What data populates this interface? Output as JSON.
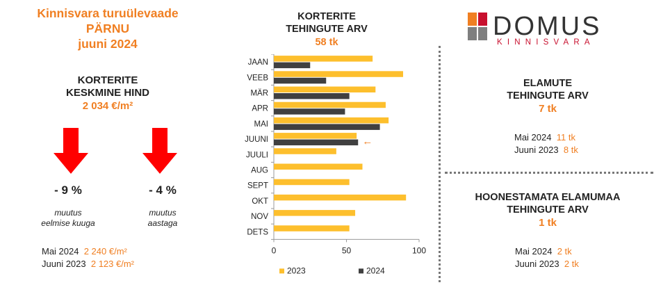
{
  "left": {
    "title_lines": [
      "Kinnisvara turuülevaade",
      "PÄRNU",
      "juuni 2024"
    ],
    "avg_price_label_lines": [
      "KORTERITE",
      "KESKMINE HIND"
    ],
    "avg_price_value": "2 034 €/m²",
    "changes": [
      {
        "value": "- 9 %",
        "note_lines": [
          "muutus",
          "eelmise kuuga"
        ]
      },
      {
        "value": "- 4 %",
        "note_lines": [
          "muutus",
          "aastaga"
        ]
      }
    ],
    "comparison": [
      {
        "label": "Mai 2024",
        "value": "2 240 €/m²"
      },
      {
        "label": "Juuni 2023",
        "value": "2 123 €/m²"
      }
    ]
  },
  "middle": {
    "title_lines": [
      "KORTERITE",
      "TEHINGUTE ARV"
    ],
    "total": "58 tk",
    "arrow_glyph": "←"
  },
  "chart_data": {
    "type": "bar",
    "orientation": "horizontal",
    "categories": [
      "JAAN",
      "VEEB",
      "MÄR",
      "APR",
      "MAI",
      "JUUNI",
      "JUULI",
      "AUG",
      "SEPT",
      "OKT",
      "NOV",
      "DETS"
    ],
    "series": [
      {
        "name": "2023",
        "color": "#fdbf2d",
        "values": [
          68,
          89,
          70,
          77,
          79,
          57,
          43,
          61,
          52,
          91,
          56,
          52
        ]
      },
      {
        "name": "2024",
        "color": "#404040",
        "values": [
          25,
          36,
          52,
          49,
          73,
          58,
          null,
          null,
          null,
          null,
          null,
          null
        ]
      }
    ],
    "xlim": [
      0,
      100
    ],
    "xticks": [
      0,
      50,
      100
    ],
    "legend_position": "bottom",
    "highlight_category": "JUUNI"
  },
  "right": {
    "logo_text": "DOMUS",
    "logo_subtext": "KINNISVARA",
    "logo_colors": {
      "orange": "#f07f22",
      "red": "#c8102e",
      "grey": "#7f7f7f",
      "dark": "#333333"
    },
    "houses": {
      "title_lines": [
        "ELAMUTE",
        "TEHINGUTE ARV"
      ],
      "value": "7 tk",
      "comparison": [
        {
          "label": "Mai 2024",
          "value": "11 tk"
        },
        {
          "label": "Juuni 2023",
          "value": "8 tk"
        }
      ]
    },
    "land": {
      "title_lines": [
        "HOONESTAMATA ELAMUMAA",
        "TEHINGUTE ARV"
      ],
      "value": "1 tk",
      "comparison": [
        {
          "label": "Mai 2024",
          "value": "2 tk"
        },
        {
          "label": "Juuni 2023",
          "value": "2 tk"
        }
      ]
    }
  },
  "colors": {
    "accent": "#f07f22",
    "arrow_red": "#ff0000",
    "bar_2023": "#fdbf2d",
    "bar_2024": "#404040"
  }
}
